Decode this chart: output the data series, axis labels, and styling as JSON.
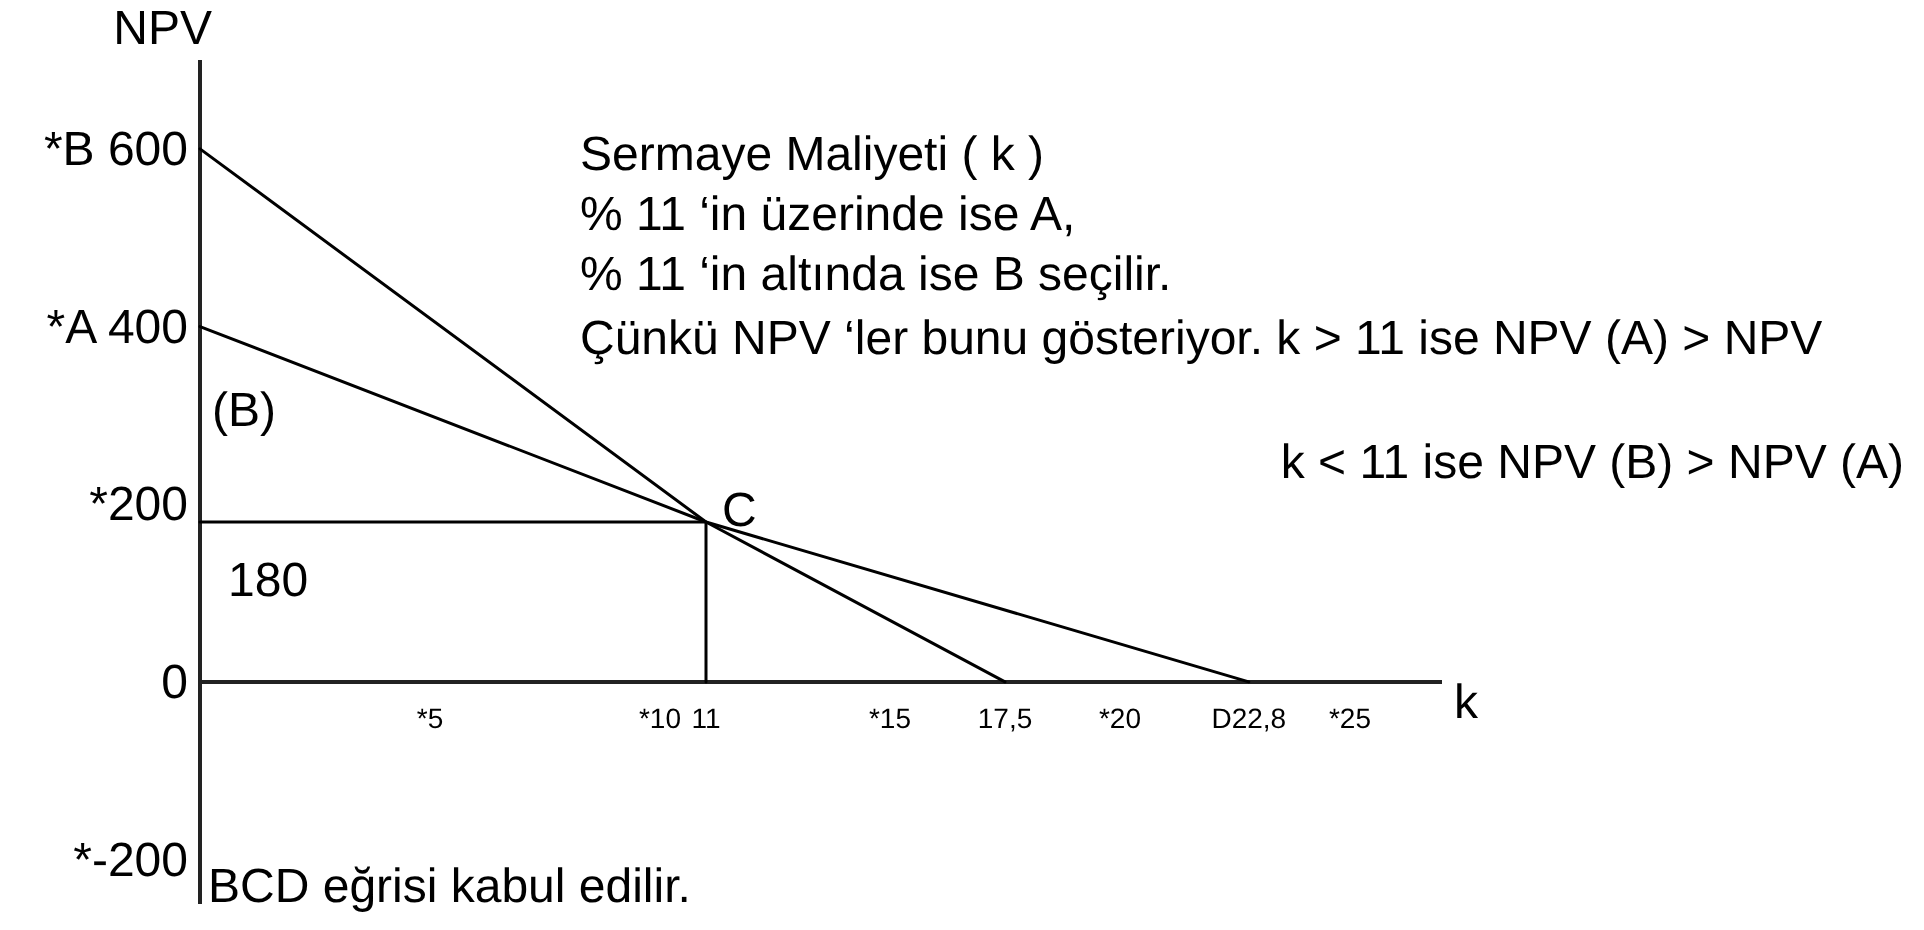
{
  "chart_data": {
    "type": "line",
    "xlabel": "k",
    "ylabel": "NPV",
    "xlim": [
      0,
      27
    ],
    "xticks": [
      {
        "value": 5,
        "label": "*5"
      },
      {
        "value": 10,
        "label": "*10"
      },
      11,
      {
        "value": 15,
        "label": "*15"
      },
      {
        "value": 17.5,
        "label": "17,5"
      },
      {
        "value": 20,
        "label": "*20"
      },
      {
        "value": 22.8,
        "label": "D22,8"
      },
      {
        "value": 25,
        "label": "*25"
      }
    ],
    "ylim": [
      -250,
      700
    ],
    "yticks": [
      {
        "value": 600,
        "label": "*B 600"
      },
      {
        "value": 400,
        "label": "*A 400"
      },
      {
        "value": 200,
        "label": "*200"
      },
      0,
      {
        "value": -200,
        "label": "*-200"
      }
    ],
    "series": [
      {
        "color": "#000000",
        "x": [
          0,
          11,
          17.5
        ],
        "values": [
          600,
          180,
          0
        ]
      },
      {
        "color": "#000000",
        "x": [
          0,
          11,
          22.8
        ],
        "values": [
          400,
          180,
          0
        ]
      },
      {
        "color": "#000000",
        "x": [
          0,
          11,
          11
        ],
        "values": [
          180,
          180,
          0
        ]
      }
    ],
    "annotations": [
      "Sermaye Maliyeti ( k )",
      "% 11 ‘in üzerinde ise  A,",
      "% 11 ‘in altında ise  B seçilir.",
      "Çünkü NPV ‘ler bunu gösteriyor. k > 11 ise NPV (A) > NPV",
      "k < 11 ise NPV (B) > NPV (A)",
      "(B)",
      "180",
      "BCD eğrisi kabul edilir.",
      {
        "text": "C",
        "x": 11,
        "y": 180
      }
    ]
  }
}
